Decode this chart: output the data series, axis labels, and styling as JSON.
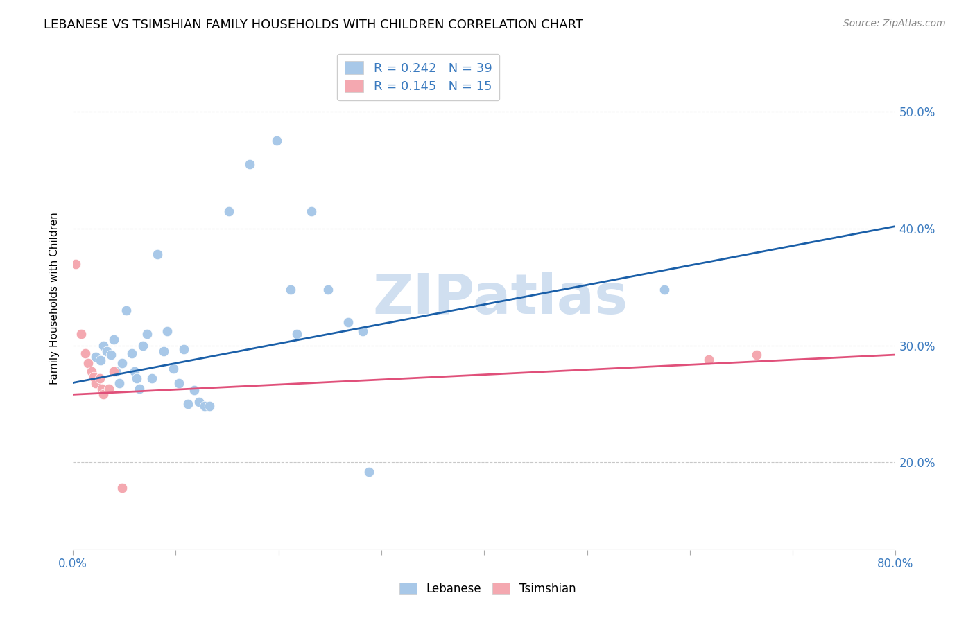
{
  "title": "LEBANESE VS TSIMSHIAN FAMILY HOUSEHOLDS WITH CHILDREN CORRELATION CHART",
  "source": "Source: ZipAtlas.com",
  "ylabel": "Family Households with Children",
  "xmin": 0.0,
  "xmax": 0.8,
  "ymin": 0.125,
  "ymax": 0.555,
  "yticks": [
    0.2,
    0.3,
    0.4,
    0.5
  ],
  "xticks": [
    0.0,
    0.1,
    0.2,
    0.3,
    0.4,
    0.5,
    0.6,
    0.7,
    0.8
  ],
  "x_label_ticks": [
    0.0,
    0.8
  ],
  "legend_line1": "R = 0.242   N = 39",
  "legend_line2": "R = 0.145   N = 15",
  "blue_color": "#a8c8e8",
  "pink_color": "#f4a8b0",
  "line_blue": "#1a5fa8",
  "line_pink": "#e0507a",
  "watermark": "ZIPatlas",
  "watermark_color": "#d0dff0",
  "title_fontsize": 13,
  "label_fontsize": 11,
  "tick_fontsize": 12,
  "axis_color": "#3a7abf",
  "blue_scatter": [
    [
      0.022,
      0.29
    ],
    [
      0.027,
      0.287
    ],
    [
      0.03,
      0.3
    ],
    [
      0.033,
      0.295
    ],
    [
      0.037,
      0.292
    ],
    [
      0.04,
      0.305
    ],
    [
      0.042,
      0.278
    ],
    [
      0.045,
      0.268
    ],
    [
      0.048,
      0.285
    ],
    [
      0.052,
      0.33
    ],
    [
      0.057,
      0.293
    ],
    [
      0.06,
      0.278
    ],
    [
      0.062,
      0.272
    ],
    [
      0.065,
      0.263
    ],
    [
      0.068,
      0.3
    ],
    [
      0.072,
      0.31
    ],
    [
      0.077,
      0.272
    ],
    [
      0.082,
      0.378
    ],
    [
      0.088,
      0.295
    ],
    [
      0.092,
      0.312
    ],
    [
      0.098,
      0.28
    ],
    [
      0.103,
      0.268
    ],
    [
      0.108,
      0.297
    ],
    [
      0.112,
      0.25
    ],
    [
      0.118,
      0.262
    ],
    [
      0.123,
      0.252
    ],
    [
      0.128,
      0.248
    ],
    [
      0.133,
      0.248
    ],
    [
      0.152,
      0.415
    ],
    [
      0.172,
      0.455
    ],
    [
      0.198,
      0.475
    ],
    [
      0.212,
      0.348
    ],
    [
      0.218,
      0.31
    ],
    [
      0.232,
      0.415
    ],
    [
      0.248,
      0.348
    ],
    [
      0.268,
      0.32
    ],
    [
      0.282,
      0.312
    ],
    [
      0.575,
      0.348
    ],
    [
      0.288,
      0.192
    ]
  ],
  "pink_scatter": [
    [
      0.003,
      0.37
    ],
    [
      0.008,
      0.31
    ],
    [
      0.012,
      0.293
    ],
    [
      0.015,
      0.285
    ],
    [
      0.018,
      0.278
    ],
    [
      0.02,
      0.273
    ],
    [
      0.022,
      0.268
    ],
    [
      0.026,
      0.272
    ],
    [
      0.028,
      0.263
    ],
    [
      0.03,
      0.258
    ],
    [
      0.035,
      0.263
    ],
    [
      0.04,
      0.278
    ],
    [
      0.048,
      0.178
    ],
    [
      0.618,
      0.288
    ],
    [
      0.665,
      0.292
    ]
  ],
  "blue_line_x": [
    0.0,
    0.8
  ],
  "blue_line_y": [
    0.268,
    0.402
  ],
  "pink_line_x": [
    0.0,
    0.8
  ],
  "pink_line_y": [
    0.258,
    0.292
  ]
}
